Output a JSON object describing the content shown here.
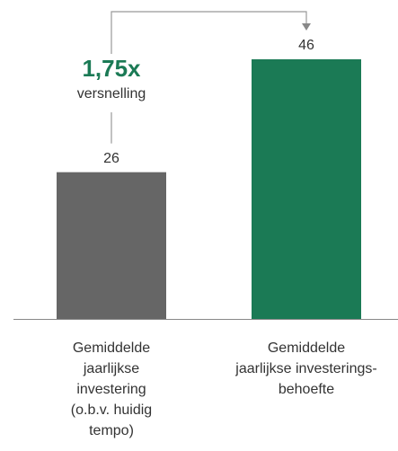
{
  "chart_data": {
    "type": "bar",
    "categories": [
      [
        "Gemiddelde",
        "jaarlijkse",
        "investering",
        "(o.b.v. huidig",
        "tempo)"
      ],
      [
        "Gemiddelde",
        "jaarlijkse investerings-",
        "behoefte"
      ]
    ],
    "values": [
      26,
      46
    ],
    "colors": [
      "#666666",
      "#1b7a55"
    ],
    "annotation": {
      "value": "1,75x",
      "label": "versnelling",
      "color": "#1b7a55"
    }
  }
}
